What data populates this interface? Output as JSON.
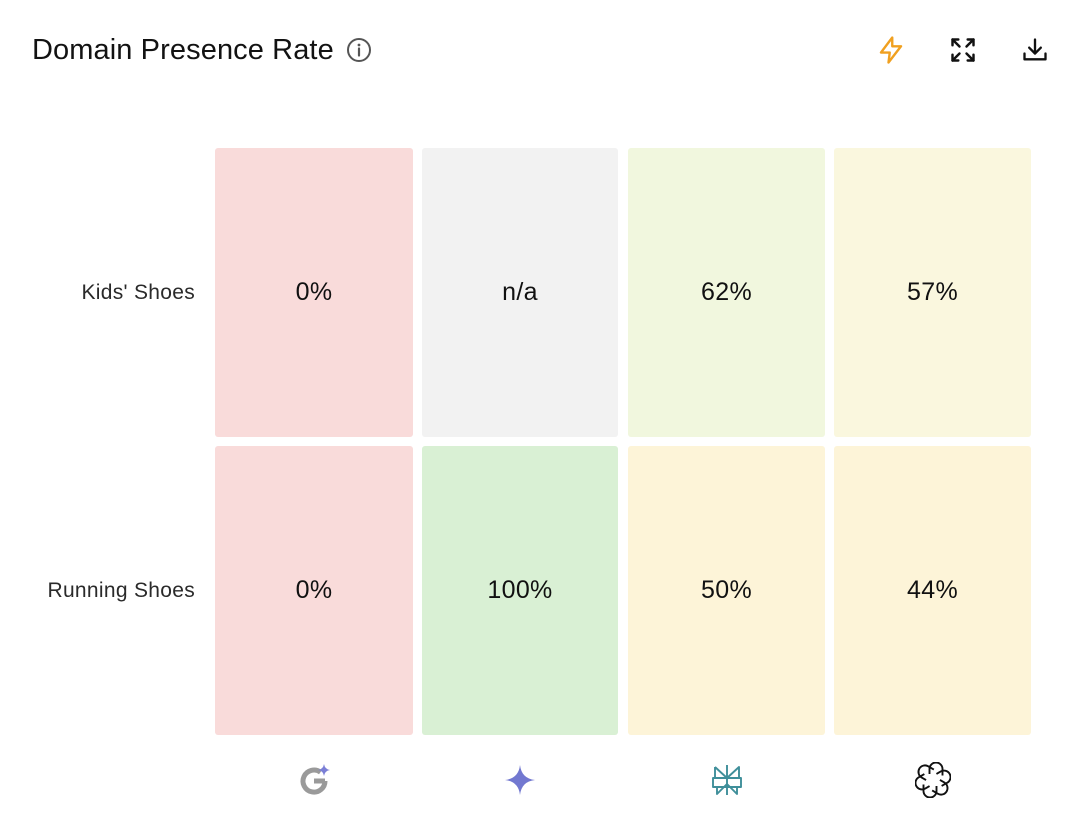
{
  "header": {
    "title": "Domain Presence Rate",
    "info_icon": "info-icon",
    "actions": [
      {
        "name": "insights-button",
        "icon": "lightning-icon",
        "color": "#f0a020"
      },
      {
        "name": "expand-button",
        "icon": "expand-icon",
        "color": "#111111"
      },
      {
        "name": "download-button",
        "icon": "download-icon",
        "color": "#111111"
      }
    ]
  },
  "chart_data": {
    "type": "heatmap",
    "rows": [
      "Kids' Shoes",
      "Running Shoes"
    ],
    "columns": [
      {
        "icon": "google-ai-overview-icon"
      },
      {
        "icon": "gemini-icon"
      },
      {
        "icon": "perplexity-icon"
      },
      {
        "icon": "chatgpt-icon"
      }
    ],
    "values": [
      [
        0,
        null,
        62,
        57
      ],
      [
        0,
        100,
        50,
        44
      ]
    ],
    "labels": [
      [
        "0%",
        "n/a",
        "62%",
        "57%"
      ],
      [
        "0%",
        "100%",
        "50%",
        "44%"
      ]
    ],
    "colors": [
      [
        "#f9dbda",
        "#f2f2f2",
        "#f1f7de",
        "#faf7de"
      ],
      [
        "#f9dbda",
        "#d9f0d4",
        "#fdf4d8",
        "#fdf4d8"
      ]
    ]
  }
}
